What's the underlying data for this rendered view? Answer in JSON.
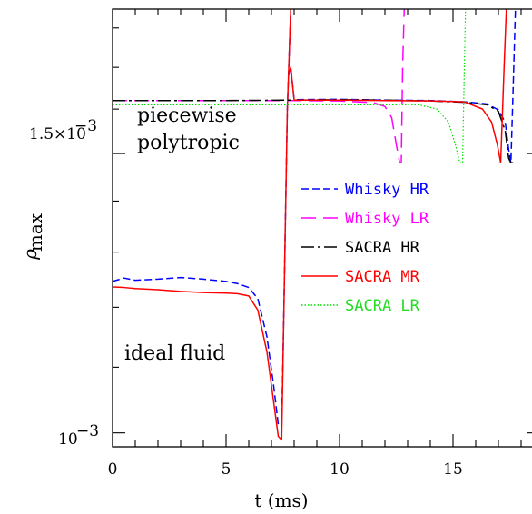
{
  "chart_data": {
    "type": "line",
    "xlabel": "t (ms)",
    "ylabel": "ρ",
    "ylabel_sub": "max",
    "xlim": [
      0,
      18.8
    ],
    "ylim": [
      0.00098,
      0.00185
    ],
    "y_scale": "log",
    "x_ticks": [
      "0",
      "5",
      "10",
      "15"
    ],
    "y_ticks": [
      {
        "value": 0.0015,
        "mantissa": "1.5×10",
        "exp": "−3"
      },
      {
        "value": 0.001,
        "mantissa": "10",
        "exp": "−3"
      }
    ],
    "annotations": {
      "piecewise_line1": "piecewise",
      "piecewise_line2": "polytropic",
      "ideal": "ideal fluid"
    },
    "legend": {
      "placement": "center-right",
      "entries": [
        {
          "label": "Whisky HR",
          "color": "#0000ff",
          "dash": "8,4"
        },
        {
          "label": "Whisky LR",
          "color": "#ff00ff",
          "dash": "16,8"
        },
        {
          "label": "SACRA HR",
          "color": "#000000",
          "dash": "14,4,3,4"
        },
        {
          "label": "SACRA MR",
          "color": "#ff0000",
          "dash": ""
        },
        {
          "label": "SACRA LR",
          "color": "#00dd00",
          "dash": "1.5,2"
        }
      ]
    },
    "series": [
      {
        "name": "Whisky HR",
        "group": "ideal fluid",
        "x": [
          0,
          0.5,
          1,
          2,
          3,
          4,
          5,
          5.5,
          6,
          6.4,
          6.8,
          7.1,
          7.3,
          7.45,
          7.55,
          7.7,
          7.85
        ],
        "y": [
          0.001246,
          0.001252,
          0.001248,
          0.00125,
          0.001253,
          0.00125,
          0.001246,
          0.001242,
          0.001235,
          0.001215,
          0.00115,
          0.00107,
          0.001012,
          0.00101,
          0.0012,
          0.0016,
          0.00185
        ]
      },
      {
        "name": "SACRA MR",
        "group": "ideal fluid",
        "x": [
          0,
          0.5,
          1,
          2,
          3,
          4,
          5,
          5.5,
          6,
          6.4,
          6.8,
          7.1,
          7.3,
          7.45,
          7.55,
          7.7,
          7.85
        ],
        "y": [
          0.001236,
          0.001235,
          0.001233,
          0.001231,
          0.001228,
          0.001226,
          0.001225,
          0.001224,
          0.00122,
          0.001195,
          0.001125,
          0.001045,
          0.000995,
          0.00099,
          0.0012,
          0.0016,
          0.00185
        ]
      },
      {
        "name": "Whisky HR",
        "group": "piecewise polytropic",
        "x": [
          7.75,
          7.85,
          8,
          10,
          12,
          14,
          15.5,
          16.5,
          17,
          17.3,
          17.45,
          17.55,
          17.65,
          17.75
        ],
        "y": [
          0.00168,
          0.0017,
          0.001622,
          0.001623,
          0.001621,
          0.00162,
          0.001617,
          0.001612,
          0.001598,
          0.00157,
          0.00151,
          0.00148,
          0.00165,
          0.00185
        ]
      },
      {
        "name": "Whisky LR",
        "group": "piecewise polytropic",
        "x": [
          0,
          2,
          5,
          8,
          10,
          11.5,
          12,
          12.3,
          12.5,
          12.65,
          12.72,
          12.78,
          12.85
        ],
        "y": [
          0.00162,
          0.00162,
          0.00162,
          0.00162,
          0.001619,
          0.001615,
          0.001606,
          0.00158,
          0.00152,
          0.00148,
          0.00148,
          0.0017,
          0.00185
        ]
      },
      {
        "name": "SACRA HR",
        "group": "piecewise polytropic",
        "x": [
          0,
          2,
          5,
          8,
          10,
          12,
          14,
          15.5,
          16.5,
          17,
          17.3,
          17.45,
          17.55,
          17.65
        ],
        "y": [
          0.00162,
          0.00162,
          0.00162,
          0.001621,
          0.001622,
          0.001621,
          0.001619,
          0.001616,
          0.00161,
          0.001595,
          0.00155,
          0.00149,
          0.00148,
          0.00148
        ]
      },
      {
        "name": "SACRA MR",
        "group": "piecewise polytropic",
        "x": [
          7.75,
          7.85,
          8,
          10,
          12,
          14,
          15.5,
          16.3,
          16.7,
          16.95,
          17.1,
          17.25,
          17.35
        ],
        "y": [
          0.00168,
          0.0017,
          0.001621,
          0.001621,
          0.00162,
          0.001619,
          0.001617,
          0.0016,
          0.00157,
          0.00152,
          0.00148,
          0.0017,
          0.00185
        ]
      },
      {
        "name": "SACRA LR",
        "group": "piecewise polytropic",
        "x": [
          0,
          2,
          5,
          8,
          10,
          12,
          13.5,
          14.3,
          14.8,
          15.1,
          15.3,
          15.42,
          15.5,
          15.55
        ],
        "y": [
          0.00161,
          0.00161,
          0.00161,
          0.00161,
          0.00161,
          0.00161,
          0.00161,
          0.0016,
          0.00157,
          0.00152,
          0.00148,
          0.00148,
          0.0017,
          0.00185
        ]
      }
    ]
  }
}
